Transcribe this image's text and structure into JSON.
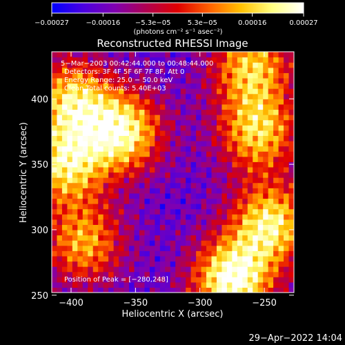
{
  "chart_data": {
    "type": "heatmap",
    "title": "Reconstructed RHESSI Image",
    "xlabel": "Heliocentric X (arcsec)",
    "ylabel": "Heliocentric Y (arcsec)",
    "xlim": [
      -415,
      -227
    ],
    "ylim": [
      252,
      436
    ],
    "xticks": [
      -400,
      -350,
      -300,
      -250
    ],
    "yticks": [
      250,
      300,
      350,
      400
    ],
    "xtick_labels": [
      "−400",
      "−350",
      "−300",
      "−250"
    ],
    "ytick_labels": [
      "250",
      "300",
      "350",
      "400"
    ],
    "colorbar": {
      "range": [
        -0.00027,
        0.00027
      ],
      "ticks": [
        -0.00027,
        -0.00016,
        -5.3e-05,
        5.3e-05,
        0.00016,
        0.00027
      ],
      "tick_labels": [
        "−0.00027",
        "−0.00016",
        "−5.3e−05",
        "5.3e−05",
        "0.00016",
        "0.00027"
      ],
      "unit_label": "(photons cm⁻² s⁻¹ asec⁻²)",
      "colormap": [
        "#0000ff",
        "#4a00e0",
        "#8000b0",
        "#b00050",
        "#e00000",
        "#ff6000",
        "#ffc000",
        "#ffff80",
        "#ffffff"
      ]
    },
    "annotations": [
      "5−Mar−2003 00:42:44.000 to 00:48:44.000",
      "Detectors: 3F 4F 5F 6F 7F 8F, Att 0",
      "Energy Range: 25.0 − 50.0 keV",
      "Clean     Total counts: 5.40E+03"
    ],
    "peak_label": "Position of Peak = [−280,248]",
    "peak_position": [
      -280,
      248
    ],
    "bright_regions": [
      {
        "x": -360,
        "y": 375,
        "value": 0.00022
      },
      {
        "x": -400,
        "y": 400,
        "value": 0.00016
      },
      {
        "x": -405,
        "y": 350,
        "value": 0.00018
      },
      {
        "x": -390,
        "y": 290,
        "value": 0.00012
      },
      {
        "x": -275,
        "y": 262,
        "value": 0.00027
      },
      {
        "x": -245,
        "y": 305,
        "value": 0.0002
      },
      {
        "x": -255,
        "y": 375,
        "value": 0.00016
      },
      {
        "x": -260,
        "y": 425,
        "value": 0.00015
      }
    ]
  },
  "footer": {
    "date": "29−Apr−2022 14:04"
  }
}
